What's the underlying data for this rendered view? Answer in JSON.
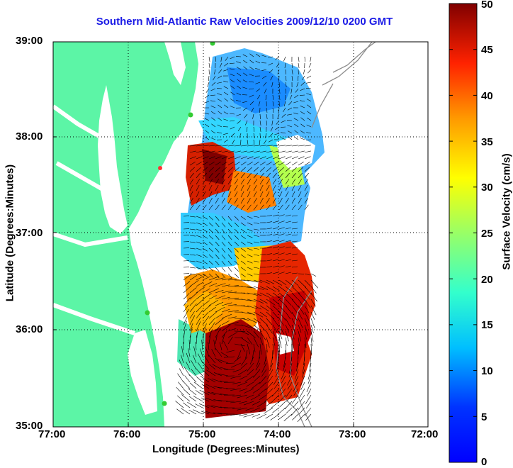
{
  "title": "Southern Mid-Atlantic Raw Velocities 2009/12/10 0200 GMT",
  "x_axis": {
    "label": "Longitude (Degrees:Minutes)",
    "ticks": [
      "77:00",
      "76:00",
      "75:00",
      "74:00",
      "73:00",
      "72:00"
    ]
  },
  "y_axis": {
    "label": "Latitude (Degrees:Minutes)",
    "ticks": [
      "39:00",
      "38:00",
      "37:00",
      "36:00",
      "35:00"
    ]
  },
  "colorbar": {
    "label": "Surface Velocity (cm/s)",
    "ticks": [
      "50",
      "45",
      "40",
      "35",
      "30",
      "25",
      "20",
      "15",
      "10",
      "5",
      "0"
    ],
    "range": [
      0,
      50
    ],
    "colormap": "jet"
  },
  "colors": {
    "land": "#5cf5a6",
    "water": "#ffffff",
    "title": "#1a1ae6",
    "bathymetry": "#8c8c8c",
    "arrows": "#000000"
  }
}
